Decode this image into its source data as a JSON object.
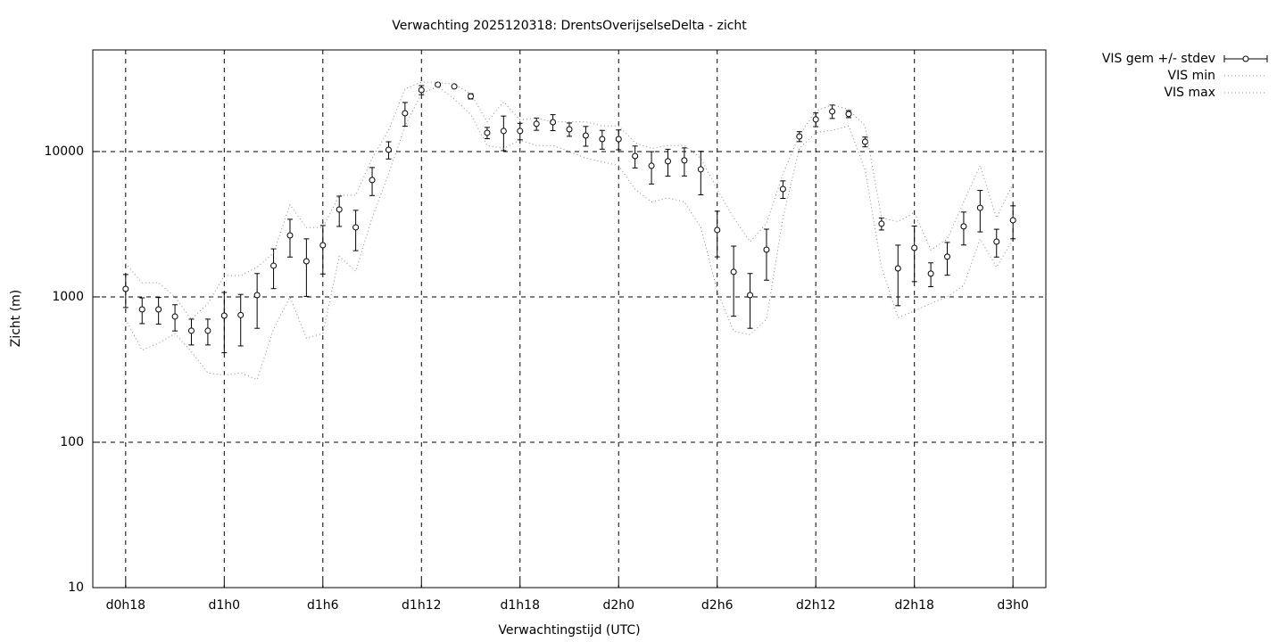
{
  "chart_data": {
    "type": "line",
    "title": "Verwachting 2025120318: DrentsOverijselseDelta - zicht",
    "xlabel": "Verwachtingstijd (UTC)",
    "ylabel": "Zicht (m)",
    "ylog": true,
    "grid": true,
    "legend": "outside-right",
    "xlim": [
      16,
      74
    ],
    "ylim": [
      10,
      50000
    ],
    "xticks": [
      {
        "value": 18,
        "label": "d0h18"
      },
      {
        "value": 24,
        "label": "d1h0"
      },
      {
        "value": 30,
        "label": "d1h6"
      },
      {
        "value": 36,
        "label": "d1h12"
      },
      {
        "value": 42,
        "label": "d1h18"
      },
      {
        "value": 48,
        "label": "d2h0"
      },
      {
        "value": 54,
        "label": "d2h6"
      },
      {
        "value": 60,
        "label": "d2h12"
      },
      {
        "value": 66,
        "label": "d2h18"
      },
      {
        "value": 72,
        "label": "d3h0"
      }
    ],
    "yticks": [
      10,
      100,
      1000,
      10000
    ],
    "x": [
      18,
      19,
      20,
      21,
      22,
      23,
      24,
      25,
      26,
      27,
      28,
      29,
      30,
      31,
      32,
      33,
      34,
      35,
      36,
      37,
      38,
      39,
      40,
      41,
      42,
      43,
      44,
      45,
      46,
      47,
      48,
      49,
      50,
      51,
      52,
      53,
      54,
      55,
      56,
      57,
      58,
      59,
      60,
      61,
      62,
      63,
      64,
      65,
      66,
      67,
      68,
      69,
      70,
      71,
      72
    ],
    "series": [
      {
        "name": "VIS gem +/- stdev",
        "color": "#000000",
        "style": "errorbar",
        "values": [
          1135,
          820,
          820,
          733,
          585,
          585,
          743,
          750,
          1028,
          1640,
          2650,
          1758,
          2268,
          3993,
          3010,
          6370,
          10280,
          18350,
          26500,
          28840,
          28050,
          24000,
          13450,
          13840,
          13840,
          15500,
          15930,
          14230,
          12880,
          12180,
          12180,
          9310,
          7980,
          8570,
          8690,
          7540,
          2885,
          1486,
          1028,
          2113,
          5520,
          12700,
          16630,
          18880,
          18110,
          11670,
          3186,
          1570,
          2173,
          1445,
          1890,
          3055,
          4100,
          2400,
          3370
        ],
        "errors": [
          290,
          165,
          170,
          150,
          118,
          118,
          330,
          290,
          420,
          500,
          770,
          750,
          830,
          940,
          930,
          1390,
          1390,
          3400,
          1900,
          500,
          500,
          1000,
          1200,
          3700,
          1800,
          1500,
          2000,
          1500,
          2000,
          1800,
          1900,
          1600,
          2000,
          1800,
          1900,
          2500,
          1000,
          750,
          420,
          810,
          760,
          1000,
          1800,
          2000,
          1000,
          900,
          300,
          700,
          900,
          270,
          480,
          780,
          1300,
          520,
          860
        ]
      },
      {
        "name": "VIS min",
        "color": "#888888",
        "style": "dotted",
        "values": [
          700,
          430,
          480,
          560,
          420,
          300,
          290,
          300,
          270,
          600,
          1000,
          520,
          560,
          1900,
          1500,
          3500,
          7000,
          15000,
          25000,
          28000,
          23000,
          18000,
          11000,
          10500,
          12000,
          11000,
          11000,
          10000,
          9000,
          8500,
          8000,
          5500,
          4500,
          4800,
          4500,
          3000,
          1100,
          580,
          550,
          700,
          3500,
          10500,
          13500,
          14000,
          15000,
          7500,
          1600,
          720,
          800,
          900,
          1000,
          1200,
          2500,
          1600,
          2500
        ]
      },
      {
        "name": "VIS max",
        "color": "#888888",
        "style": "dotted",
        "values": [
          1700,
          1250,
          1250,
          1000,
          700,
          900,
          1400,
          1400,
          1600,
          2000,
          4300,
          3000,
          3000,
          5000,
          5000,
          9000,
          14000,
          27000,
          30000,
          30000,
          29000,
          25000,
          16000,
          22000,
          16500,
          17000,
          16000,
          16000,
          16000,
          15000,
          15000,
          11500,
          10500,
          11000,
          11000,
          9000,
          5500,
          3500,
          2400,
          3200,
          7000,
          13000,
          19000,
          21000,
          19500,
          15000,
          3500,
          3300,
          3800,
          2100,
          2500,
          4500,
          8000,
          3500,
          6000
        ]
      }
    ]
  }
}
